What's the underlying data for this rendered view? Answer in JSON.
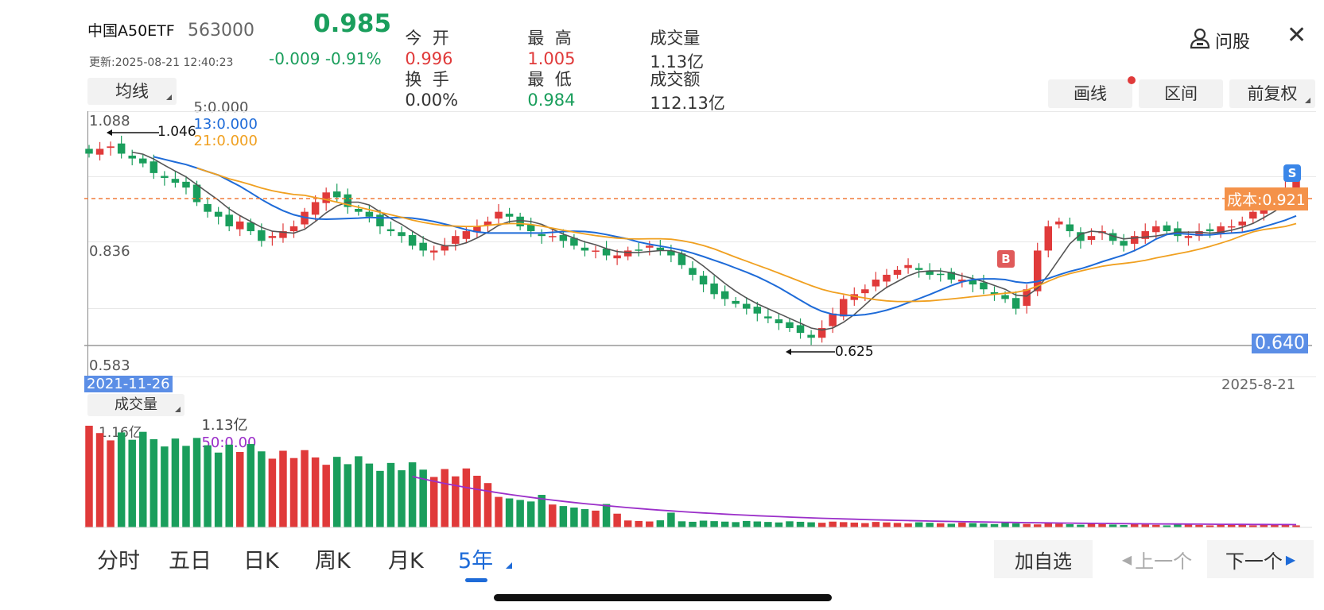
{
  "header": {
    "name": "中国A50ETF",
    "code": "563000",
    "update_time": "更新:2025-08-21 12:40:23",
    "price": "0.985",
    "change": "-0.009  -0.91%",
    "stats": {
      "open_label": "今  开",
      "open_value": "0.996",
      "high_label": "最  高",
      "high_value": "1.005",
      "volume_label": "成交量",
      "volume_value": "1.13亿",
      "turnover_label": "换  手",
      "turnover_value": "0.00%",
      "low_label": "最  低",
      "low_value": "0.984",
      "amount_label": "成交额",
      "amount_value": "112.13亿"
    },
    "ask_label": "问股",
    "close_icon": "close-icon"
  },
  "toolbar": {
    "ma_button": "均线",
    "ma5": "5:0.000",
    "ma13": "13:0.000",
    "ma21": "21:0.000",
    "draw_button": "画线",
    "range_button": "区间",
    "adjust_button": "前复权"
  },
  "main_chart": {
    "y_top": "1.088",
    "y_mid": "0.836",
    "y_bottom": "0.583",
    "max_note": "1.046",
    "min_note": "0.625",
    "cost_label": "成本:0.921",
    "price_tag": "0.640",
    "start_date": "2021-11-26",
    "end_date": "2025-8-21",
    "buy_marker": "B",
    "sell_marker": "S"
  },
  "volume_panel": {
    "button": "成交量",
    "value": "1.13亿",
    "ma50": "50:0.00",
    "top_label": "1.16亿"
  },
  "tabs": [
    "分时",
    "五日",
    "日K",
    "周K",
    "月K",
    "5年"
  ],
  "active_tab": "5年",
  "bottom_buttons": {
    "add_watch": "加自选",
    "prev": "上一个",
    "next": "下一个"
  },
  "colors": {
    "up": "#e03a3a",
    "down": "#1a9e5c",
    "ma5": "#555555",
    "ma13": "#1e6bd8",
    "ma21": "#f0a020",
    "cost_line": "#f07c3a",
    "volume_ma": "#9b2fc9",
    "accent": "#1e6bd8"
  },
  "chart_data": {
    "type": "candlestick",
    "period": "weekly (5 years)",
    "x_range": [
      "2021-11-26",
      "2025-8-21"
    ],
    "ylim": [
      0.583,
      1.088
    ],
    "y_ticks": [
      1.088,
      0.836,
      0.583
    ],
    "annotations": [
      {
        "label": "1.046",
        "kind": "period-high"
      },
      {
        "label": "0.625",
        "kind": "period-low"
      },
      {
        "label": "成本:0.921",
        "kind": "cost-line",
        "value": 0.921
      }
    ],
    "closes_estimated": [
      1.02,
      1.03,
      1.035,
      1.02,
      1.01,
      1.0,
      0.98,
      0.97,
      0.96,
      0.95,
      0.92,
      0.9,
      0.89,
      0.87,
      0.88,
      0.86,
      0.84,
      0.85,
      0.86,
      0.87,
      0.9,
      0.92,
      0.94,
      0.93,
      0.91,
      0.9,
      0.89,
      0.87,
      0.86,
      0.85,
      0.83,
      0.82,
      0.82,
      0.83,
      0.85,
      0.86,
      0.87,
      0.88,
      0.9,
      0.89,
      0.87,
      0.86,
      0.85,
      0.85,
      0.84,
      0.83,
      0.82,
      0.82,
      0.81,
      0.81,
      0.82,
      0.82,
      0.83,
      0.82,
      0.81,
      0.79,
      0.77,
      0.75,
      0.73,
      0.72,
      0.71,
      0.7,
      0.69,
      0.68,
      0.67,
      0.66,
      0.65,
      0.64,
      0.66,
      0.69,
      0.72,
      0.73,
      0.74,
      0.76,
      0.77,
      0.78,
      0.79,
      0.78,
      0.77,
      0.77,
      0.76,
      0.76,
      0.75,
      0.74,
      0.73,
      0.72,
      0.7,
      0.74,
      0.82,
      0.87,
      0.88,
      0.86,
      0.84,
      0.85,
      0.86,
      0.84,
      0.83,
      0.85,
      0.86,
      0.87,
      0.86,
      0.85,
      0.85,
      0.86,
      0.86,
      0.87,
      0.87,
      0.88,
      0.9,
      0.92,
      0.935,
      0.95,
      0.985
    ],
    "volume": {
      "top_label": "1.16亿",
      "current": "1.13亿",
      "ma50": "50:0.00"
    }
  }
}
